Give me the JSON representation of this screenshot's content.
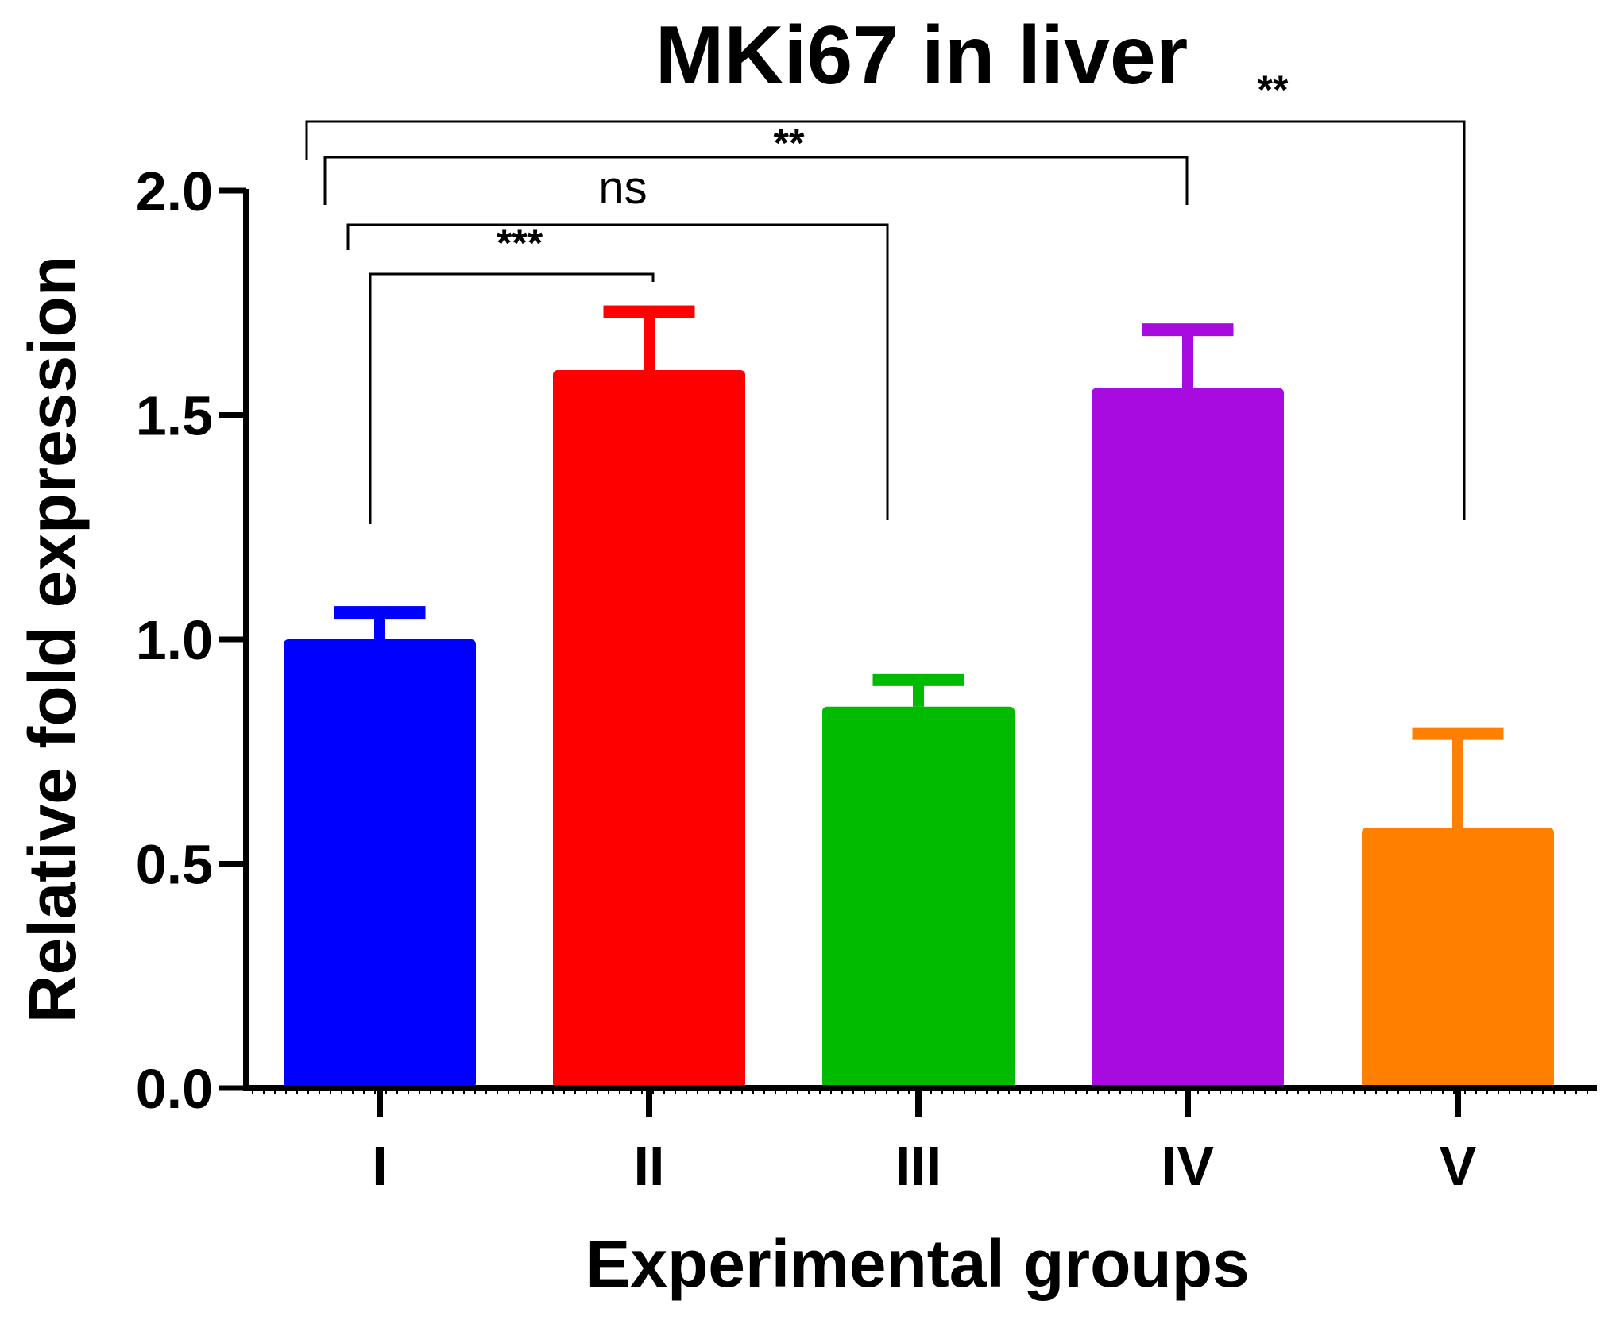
{
  "chart_data": {
    "type": "bar",
    "title": "MKi67 in liver",
    "xlabel": "Experimental groups",
    "ylabel": "Relative fold expression",
    "ylim": [
      0,
      2.0
    ],
    "yticks": [
      "0.0",
      "0.5",
      "1.0",
      "1.5",
      "2.0"
    ],
    "categories": [
      "I",
      "II",
      "III",
      "IV",
      "V"
    ],
    "values": [
      1.0,
      1.6,
      0.85,
      1.56,
      0.58
    ],
    "error_upper": [
      1.06,
      1.73,
      0.91,
      1.69,
      0.79
    ],
    "colors": [
      "#0000ff",
      "#ff0000",
      "#00bb00",
      "#a80be0",
      "#ff7f00"
    ],
    "comparisons": [
      {
        "from": "I",
        "to": "II",
        "label": "***"
      },
      {
        "from": "I",
        "to": "III",
        "label": "ns"
      },
      {
        "from": "I",
        "to": "IV",
        "label": "**"
      },
      {
        "from": "I",
        "to": "V",
        "label": "**"
      }
    ]
  }
}
